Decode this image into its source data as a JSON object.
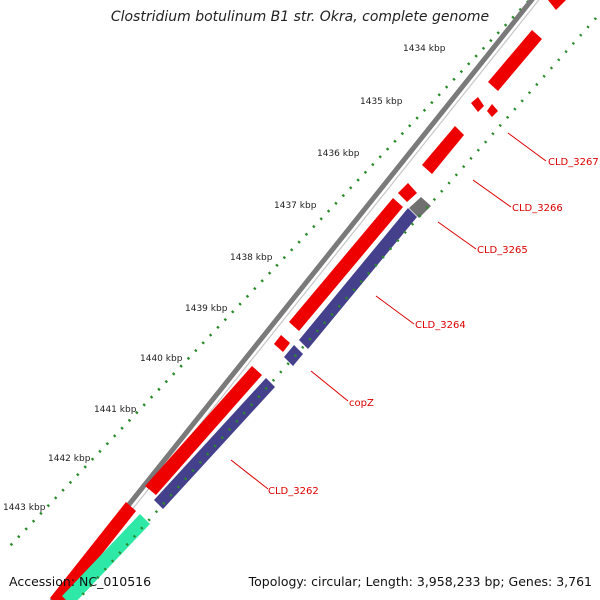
{
  "title": "Clostridium botulinum B1 str. Okra, complete genome",
  "footer": {
    "accession": "Accession: NC_010516",
    "topology": "Topology: circular; Length: 3,958,233 bp; Genes: 3,761"
  },
  "ticks": [
    {
      "label": "1434 kbp"
    },
    {
      "label": "1435 kbp"
    },
    {
      "label": "1436 kbp"
    },
    {
      "label": "1437 kbp"
    },
    {
      "label": "1438 kbp"
    },
    {
      "label": "1439 kbp"
    },
    {
      "label": "1440 kbp"
    },
    {
      "label": "1441 kbp"
    },
    {
      "label": "1442 kbp"
    },
    {
      "label": "1443 kbp"
    }
  ],
  "gene_labels": [
    {
      "name": "CLD_3267"
    },
    {
      "name": "CLD_3266"
    },
    {
      "name": "CLD_3265"
    },
    {
      "name": "CLD_3264"
    },
    {
      "name": "copZ"
    },
    {
      "name": "CLD_3262"
    }
  ],
  "colors": {
    "forward_gene": "#ee0000",
    "reverse_gene": "#44408c",
    "other_gene": "#707070",
    "rna_gene": "#2ee8a8",
    "backbone": "#888888",
    "tick_dots": "#2a8a2a",
    "label": "#dd0000"
  }
}
